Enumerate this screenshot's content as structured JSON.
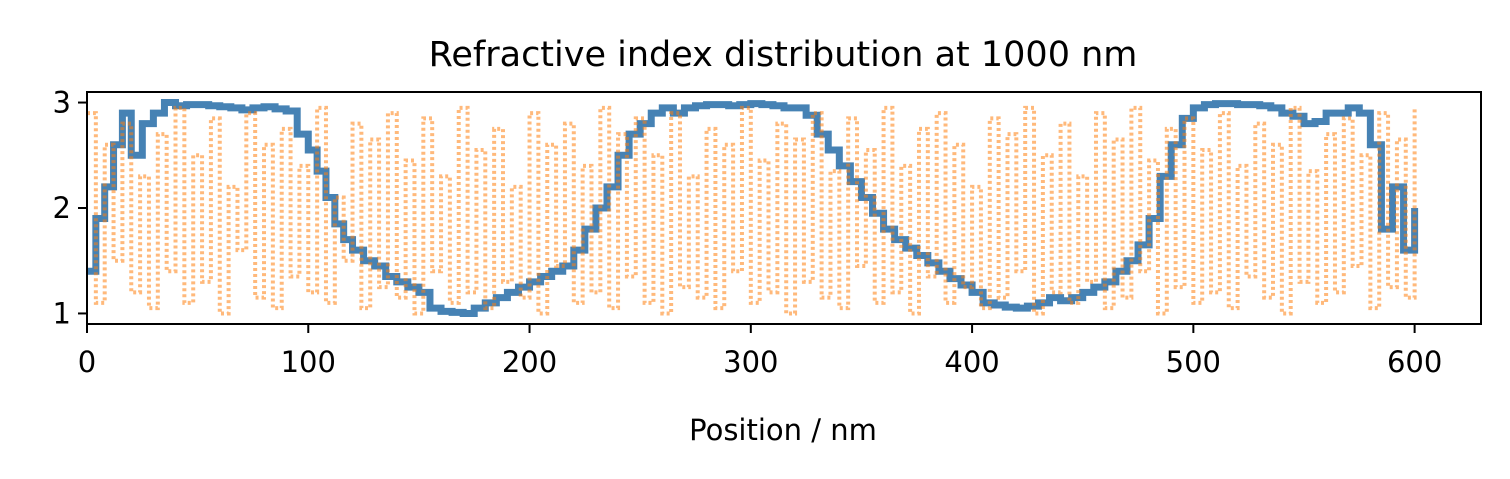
{
  "chart_data": {
    "type": "line",
    "title": "Refractive index distribution at  1000 nm",
    "xlabel": "Position / nm",
    "ylabel": "",
    "xlim": [
      0,
      630
    ],
    "ylim": [
      0.9,
      3.1
    ],
    "xticks": [
      0,
      100,
      200,
      300,
      400,
      500,
      600
    ],
    "yticks": [
      1,
      2,
      3
    ],
    "grid": false,
    "legend": "none",
    "series": [
      {
        "color": "#4682b4",
        "style": "step",
        "x": [
          0,
          4,
          8,
          12,
          16,
          20,
          25,
          30,
          35,
          40,
          45,
          50,
          55,
          60,
          65,
          70,
          75,
          80,
          85,
          90,
          95,
          100,
          104,
          108,
          112,
          116,
          120,
          125,
          130,
          135,
          140,
          145,
          150,
          155,
          160,
          165,
          170,
          175,
          180,
          185,
          190,
          195,
          200,
          205,
          210,
          215,
          220,
          225,
          230,
          235,
          240,
          245,
          250,
          255,
          260,
          265,
          270,
          275,
          280,
          285,
          290,
          295,
          300,
          305,
          310,
          315,
          320,
          325,
          330,
          335,
          340,
          345,
          350,
          355,
          360,
          365,
          370,
          375,
          380,
          385,
          390,
          395,
          400,
          405,
          410,
          415,
          420,
          425,
          430,
          435,
          440,
          445,
          450,
          455,
          460,
          465,
          470,
          475,
          480,
          485,
          490,
          495,
          500,
          505,
          510,
          515,
          520,
          525,
          530,
          535,
          540,
          545,
          550,
          555,
          560,
          565,
          570,
          575,
          580,
          585,
          590,
          595,
          600
        ],
        "values": [
          1.4,
          1.9,
          2.2,
          2.6,
          2.9,
          2.5,
          2.8,
          2.9,
          3.0,
          2.97,
          2.98,
          2.98,
          2.97,
          2.96,
          2.95,
          2.93,
          2.95,
          2.96,
          2.94,
          2.92,
          2.7,
          2.55,
          2.35,
          2.1,
          1.85,
          1.7,
          1.6,
          1.5,
          1.45,
          1.35,
          1.3,
          1.25,
          1.2,
          1.05,
          1.02,
          1.01,
          1.0,
          1.05,
          1.1,
          1.15,
          1.2,
          1.25,
          1.3,
          1.35,
          1.4,
          1.45,
          1.6,
          1.8,
          2.0,
          2.2,
          2.5,
          2.7,
          2.8,
          2.9,
          2.95,
          2.9,
          2.95,
          2.97,
          2.98,
          2.98,
          2.97,
          2.98,
          2.99,
          2.98,
          2.97,
          2.95,
          2.95,
          2.88,
          2.7,
          2.55,
          2.4,
          2.25,
          2.1,
          1.95,
          1.8,
          1.7,
          1.62,
          1.55,
          1.48,
          1.4,
          1.33,
          1.27,
          1.2,
          1.1,
          1.08,
          1.06,
          1.05,
          1.07,
          1.1,
          1.15,
          1.12,
          1.15,
          1.2,
          1.25,
          1.3,
          1.4,
          1.5,
          1.65,
          1.9,
          2.3,
          2.6,
          2.85,
          2.95,
          2.98,
          2.99,
          2.99,
          2.98,
          2.98,
          2.97,
          2.95,
          2.9,
          2.87,
          2.8,
          2.82,
          2.9,
          2.9,
          2.95,
          2.9,
          2.6,
          1.8,
          2.2,
          1.6,
          2.0
        ]
      },
      {
        "color": "#ff7f0e",
        "style": "step",
        "x": [
          0,
          4,
          8,
          12,
          16,
          20,
          24,
          28,
          32,
          36,
          40,
          44,
          48,
          52,
          56,
          60,
          64,
          68,
          72,
          76,
          80,
          84,
          88,
          92,
          96,
          100,
          104,
          108,
          112,
          116,
          120,
          124,
          128,
          132,
          136,
          140,
          144,
          148,
          152,
          156,
          160,
          164,
          168,
          172,
          176,
          180,
          184,
          188,
          192,
          196,
          200,
          204,
          208,
          212,
          216,
          220,
          224,
          228,
          232,
          236,
          240,
          244,
          248,
          252,
          256,
          260,
          264,
          268,
          272,
          276,
          280,
          284,
          288,
          292,
          296,
          300,
          304,
          308,
          312,
          316,
          320,
          324,
          328,
          332,
          336,
          340,
          344,
          348,
          352,
          356,
          360,
          364,
          368,
          372,
          376,
          380,
          384,
          388,
          392,
          396,
          400,
          404,
          408,
          412,
          416,
          420,
          424,
          428,
          432,
          436,
          440,
          444,
          448,
          452,
          456,
          460,
          464,
          468,
          472,
          476,
          480,
          484,
          488,
          492,
          496,
          500,
          504,
          508,
          512,
          516,
          520,
          524,
          528,
          532,
          536,
          540,
          544,
          548,
          552,
          556,
          560,
          564,
          568,
          572,
          576,
          580,
          584,
          588,
          592,
          596,
          600
        ],
        "values": [
          2.9,
          1.1,
          2.6,
          1.5,
          2.8,
          1.2,
          2.3,
          1.05,
          2.7,
          1.4,
          2.95,
          1.1,
          2.5,
          1.3,
          2.85,
          1.0,
          2.2,
          1.6,
          2.9,
          1.15,
          2.6,
          1.05,
          2.75,
          1.35,
          2.4,
          1.2,
          2.95,
          1.1,
          2.1,
          1.5,
          2.8,
          1.05,
          2.65,
          1.25,
          2.9,
          1.15,
          2.45,
          1.0,
          2.85,
          1.4,
          2.3,
          1.1,
          2.95,
          1.2,
          2.55,
          1.05,
          2.75,
          1.3,
          2.2,
          1.15,
          2.9,
          1.0,
          2.6,
          1.45,
          2.8,
          1.1,
          2.4,
          1.2,
          2.95,
          1.05,
          2.7,
          1.35,
          2.85,
          1.1,
          2.5,
          1.0,
          2.9,
          1.25,
          2.3,
          1.15,
          2.75,
          1.05,
          2.6,
          1.4,
          2.95,
          1.1,
          2.45,
          1.2,
          2.8,
          1.0,
          2.65,
          1.3,
          2.9,
          1.15,
          2.35,
          1.05,
          2.85,
          1.45,
          2.55,
          1.1,
          2.95,
          1.2,
          2.4,
          1.0,
          2.75,
          1.35,
          2.9,
          1.1,
          2.6,
          1.25,
          2.2,
          1.05,
          2.85,
          1.15,
          2.7,
          1.4,
          2.95,
          1.0,
          2.5,
          1.2,
          2.8,
          1.1,
          2.3,
          1.3,
          2.9,
          1.05,
          2.65,
          1.15,
          2.95,
          1.4,
          2.45,
          1.0,
          2.75,
          1.25,
          2.85,
          1.1,
          2.55,
          1.2,
          2.9,
          1.05,
          2.4,
          1.35,
          2.8,
          1.15,
          2.6,
          1.0,
          2.95,
          1.3,
          2.35,
          1.1,
          2.7,
          1.2,
          2.85,
          1.45,
          2.5,
          1.05,
          2.9,
          1.25,
          2.65,
          1.15,
          2.95
        ]
      }
    ]
  }
}
